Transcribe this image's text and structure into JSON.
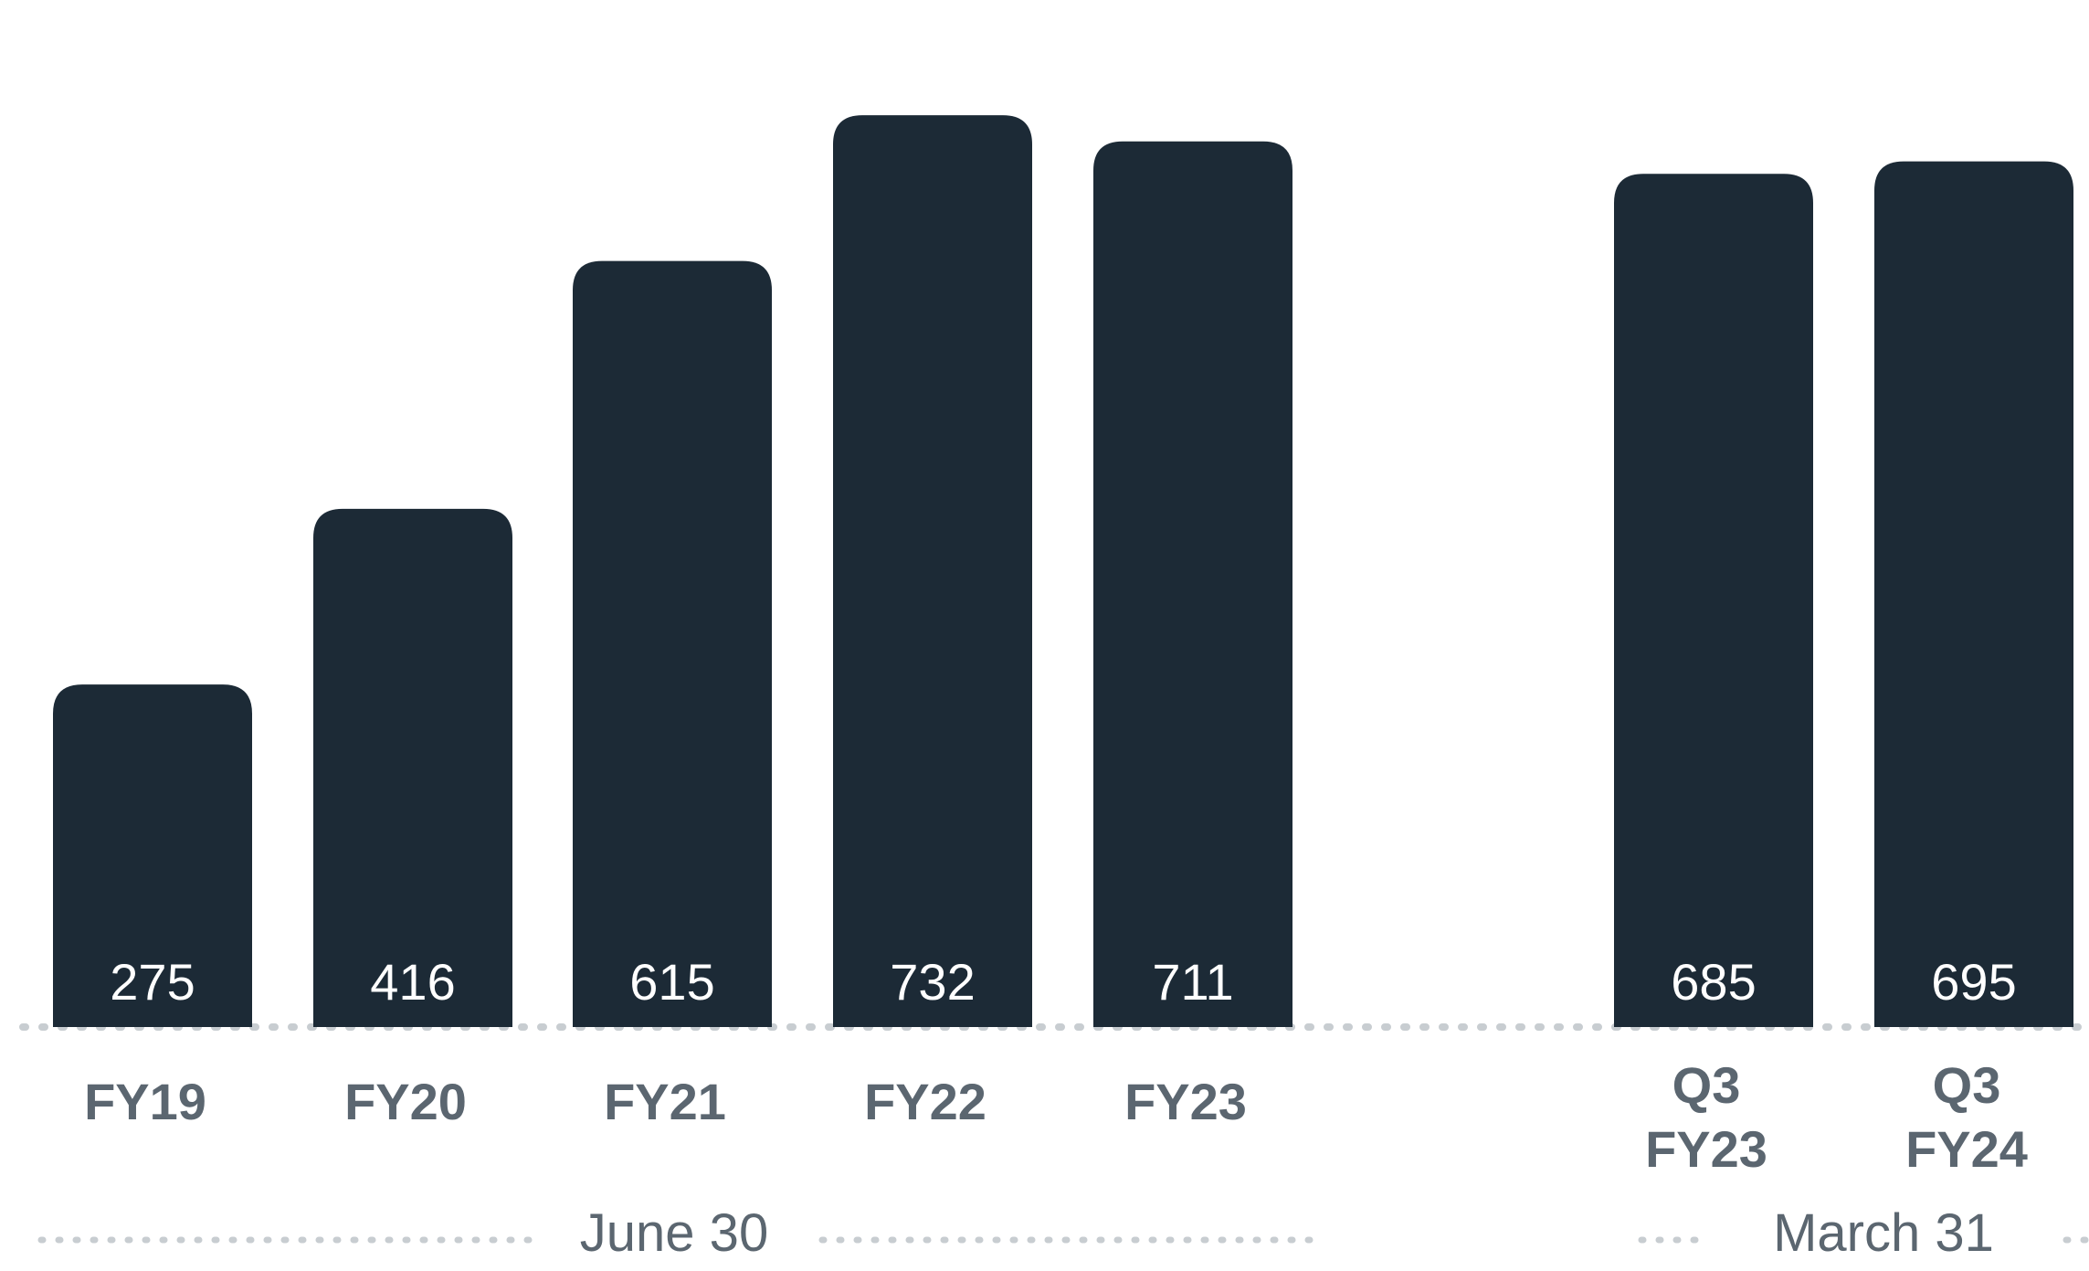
{
  "chart_data": {
    "type": "bar",
    "categories": [
      [
        "FY19"
      ],
      [
        "FY20"
      ],
      [
        "FY21"
      ],
      [
        "FY22"
      ],
      [
        "FY23"
      ],
      [
        "Q3",
        "FY23"
      ],
      [
        "Q3",
        "FY24"
      ]
    ],
    "values": [
      275,
      416,
      615,
      732,
      711,
      685,
      695
    ],
    "data_labels": [
      "275",
      "416",
      "615",
      "732",
      "711",
      "685",
      "695"
    ],
    "groups": [
      {
        "label": "June 30",
        "categories": [
          "FY19",
          "FY20",
          "FY21",
          "FY22",
          "FY23"
        ]
      },
      {
        "label": "March 31",
        "categories": [
          "Q3 FY23",
          "Q3 FY24"
        ]
      }
    ],
    "title": "",
    "xlabel": "",
    "ylabel": "",
    "ylim": [
      0,
      760
    ],
    "grid": false,
    "legend": "none",
    "colors": {
      "bar": "#1c2a36",
      "label": "#5b6670",
      "baseline": "#c8cdd1",
      "value_text": "#ffffff"
    }
  }
}
